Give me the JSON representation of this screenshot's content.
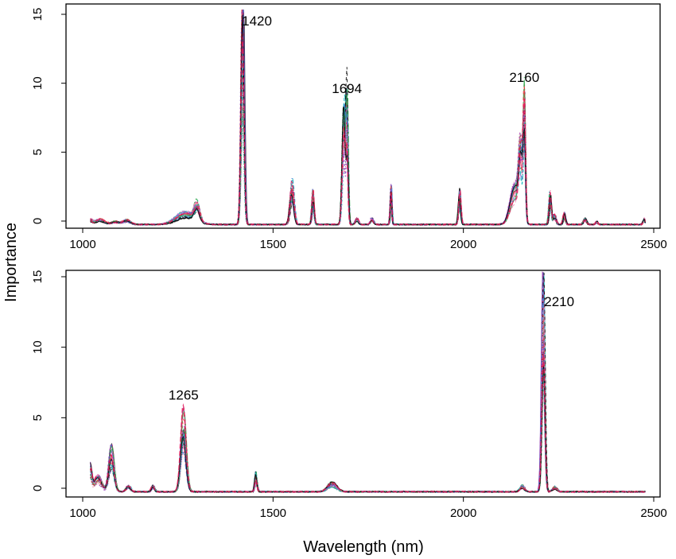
{
  "figure": {
    "xlabel": "Wavelength (nm)",
    "ylabel": "Importance"
  },
  "colors": {
    "series": [
      "#000000",
      "#e0185a",
      "#18b8c0",
      "#3b7fd6",
      "#8a3fc0",
      "#2aa84a",
      "#e03c3c",
      "#f08ab4"
    ]
  },
  "chart_data": [
    {
      "type": "line",
      "title": "",
      "xlim": [
        1000,
        2500
      ],
      "ylim": [
        0,
        15
      ],
      "x_ticks": [
        1000,
        1500,
        2000,
        2500
      ],
      "y_ticks": [
        0,
        5,
        10,
        15
      ],
      "grid": false,
      "legend": "none",
      "peak_labels": [
        {
          "text": "1420",
          "x": 1420,
          "y": 14.2
        },
        {
          "text": "1694",
          "x": 1694,
          "y": 9.3
        },
        {
          "text": "2160",
          "x": 2160,
          "y": 10.1
        }
      ],
      "peaks": [
        {
          "x": 1020,
          "h": 0.3,
          "w": 5
        },
        {
          "x": 1045,
          "h": 0.35,
          "w": 12
        },
        {
          "x": 1085,
          "h": 0.2,
          "w": 10
        },
        {
          "x": 1115,
          "h": 0.3,
          "w": 10
        },
        {
          "x": 1270,
          "h": 0.8,
          "w": 25
        },
        {
          "x": 1300,
          "h": 1.2,
          "w": 7
        },
        {
          "x": 1420,
          "h": 14.5,
          "w": 4
        },
        {
          "x": 1550,
          "h": 2.8,
          "w": 5
        },
        {
          "x": 1605,
          "h": 2.2,
          "w": 3
        },
        {
          "x": 1686,
          "h": 7.5,
          "w": 4
        },
        {
          "x": 1694,
          "h": 8.6,
          "w": 3
        },
        {
          "x": 1720,
          "h": 0.4,
          "w": 4
        },
        {
          "x": 1760,
          "h": 0.4,
          "w": 4
        },
        {
          "x": 1810,
          "h": 2.5,
          "w": 2
        },
        {
          "x": 1990,
          "h": 2.2,
          "w": 3
        },
        {
          "x": 2135,
          "h": 2.5,
          "w": 12
        },
        {
          "x": 2150,
          "h": 4.5,
          "w": 5
        },
        {
          "x": 2160,
          "h": 8.0,
          "w": 3
        },
        {
          "x": 2228,
          "h": 2.0,
          "w": 3
        },
        {
          "x": 2240,
          "h": 0.6,
          "w": 4
        },
        {
          "x": 2265,
          "h": 0.7,
          "w": 3
        },
        {
          "x": 2320,
          "h": 0.4,
          "w": 4
        },
        {
          "x": 2350,
          "h": 0.2,
          "w": 3
        },
        {
          "x": 2475,
          "h": 0.4,
          "w": 3
        }
      ]
    },
    {
      "type": "line",
      "title": "",
      "xlim": [
        1000,
        2500
      ],
      "ylim": [
        0,
        15
      ],
      "x_ticks": [
        1000,
        1500,
        2000,
        2500
      ],
      "y_ticks": [
        0,
        5,
        10,
        15
      ],
      "grid": false,
      "legend": "none",
      "peak_labels": [
        {
          "text": "1265",
          "x": 1265,
          "y": 6.3
        },
        {
          "text": "2210",
          "x": 2210,
          "y": 12.9
        }
      ],
      "peaks": [
        {
          "x": 1020,
          "h": 1.6,
          "w": 4
        },
        {
          "x": 1040,
          "h": 1.0,
          "w": 10
        },
        {
          "x": 1075,
          "h": 2.8,
          "w": 7
        },
        {
          "x": 1120,
          "h": 0.4,
          "w": 6
        },
        {
          "x": 1185,
          "h": 0.4,
          "w": 4
        },
        {
          "x": 1265,
          "h": 5.0,
          "w": 7
        },
        {
          "x": 1455,
          "h": 1.2,
          "w": 3
        },
        {
          "x": 1655,
          "h": 0.6,
          "w": 12
        },
        {
          "x": 2155,
          "h": 0.4,
          "w": 6
        },
        {
          "x": 2210,
          "h": 13.8,
          "w": 4
        },
        {
          "x": 2240,
          "h": 0.3,
          "w": 6
        }
      ]
    }
  ]
}
